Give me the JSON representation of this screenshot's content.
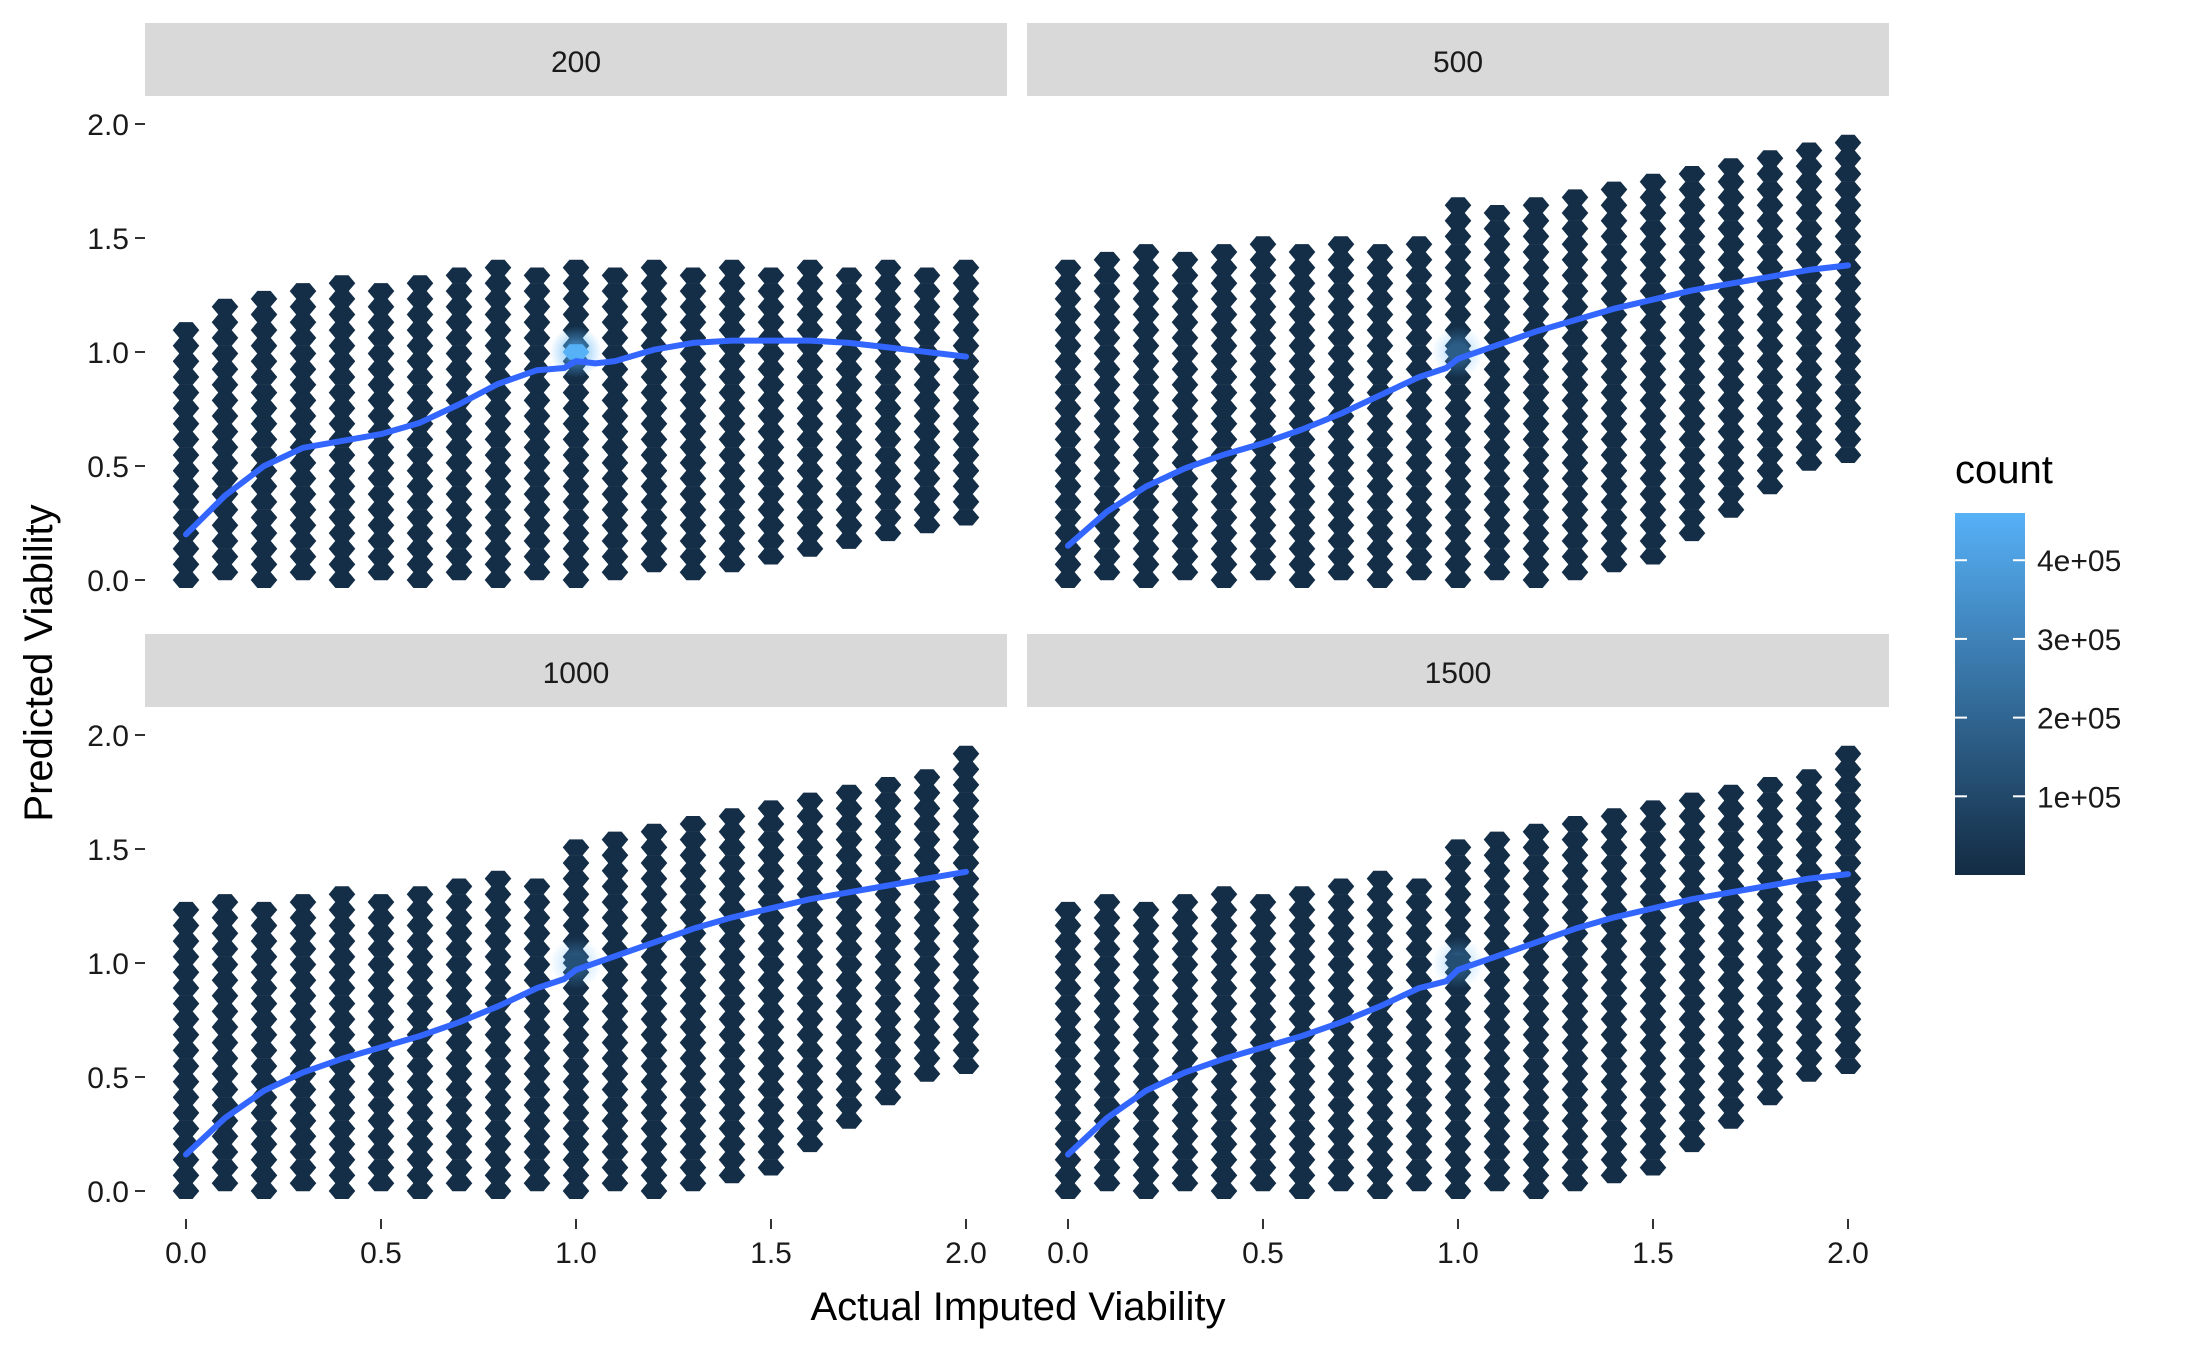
{
  "chart_data": {
    "type": "hexbin",
    "x_axis_label": "Actual Imputed Viability",
    "y_axis_label": "Predicted Viability",
    "xlim": [
      0,
      2
    ],
    "ylim": [
      0,
      2
    ],
    "x_ticks": [
      "0.0",
      "0.5",
      "1.0",
      "1.5",
      "2.0"
    ],
    "y_ticks": [
      "0.0",
      "0.5",
      "1.0",
      "1.5",
      "2.0"
    ],
    "x_tick_values": [
      0,
      0.5,
      1,
      1.5,
      2
    ],
    "y_tick_values": [
      0,
      0.5,
      1,
      1.5,
      2
    ],
    "legend": {
      "title": "count",
      "placement": "right",
      "ticks": [
        "1e+05",
        "2e+05",
        "3e+05",
        "4e+05"
      ],
      "tick_values": [
        100000,
        200000,
        300000,
        400000
      ],
      "min": 0,
      "max": 460000,
      "color_low": "#132B43",
      "color_high": "#56B1F7"
    },
    "smooth_color": "#3366FF",
    "panels": [
      {
        "label": "200",
        "cloud_upper": [
          [
            0,
            1.12
          ],
          [
            0.1,
            1.22
          ],
          [
            0.25,
            1.3
          ],
          [
            0.5,
            1.33
          ],
          [
            0.75,
            1.36
          ],
          [
            0.85,
            1.38
          ],
          [
            1.0,
            1.4
          ],
          [
            1.5,
            1.4
          ],
          [
            2.0,
            1.4
          ]
        ],
        "cloud_lower": [
          [
            0,
            0
          ],
          [
            1.0,
            0
          ],
          [
            1.4,
            0.02
          ],
          [
            1.6,
            0.1
          ],
          [
            1.8,
            0.18
          ],
          [
            2.0,
            0.22
          ]
        ],
        "hotspot": {
          "x": 1.0,
          "y": 1.0,
          "count": 460000
        },
        "smooth": {
          "x": [
            0,
            0.1,
            0.2,
            0.3,
            0.4,
            0.5,
            0.6,
            0.7,
            0.8,
            0.9,
            0.97,
            1.0,
            1.05,
            1.1,
            1.2,
            1.3,
            1.4,
            1.5,
            1.6,
            1.7,
            1.8,
            1.9,
            2.0
          ],
          "y": [
            0.2,
            0.37,
            0.5,
            0.58,
            0.61,
            0.64,
            0.69,
            0.77,
            0.86,
            0.92,
            0.93,
            0.96,
            0.95,
            0.96,
            1.01,
            1.04,
            1.05,
            1.05,
            1.05,
            1.04,
            1.02,
            1.0,
            0.98
          ]
        }
      },
      {
        "label": "500",
        "cloud_upper": [
          [
            0,
            1.42
          ],
          [
            0.25,
            1.45
          ],
          [
            0.5,
            1.48
          ],
          [
            0.75,
            1.5
          ],
          [
            0.95,
            1.52
          ],
          [
            1.0,
            1.65
          ],
          [
            1.25,
            1.7
          ],
          [
            1.5,
            1.78
          ],
          [
            1.75,
            1.85
          ],
          [
            2.0,
            1.95
          ]
        ],
        "cloud_lower": [
          [
            0,
            0
          ],
          [
            1.2,
            0
          ],
          [
            1.4,
            0.05
          ],
          [
            1.6,
            0.15
          ],
          [
            1.75,
            0.3
          ],
          [
            1.85,
            0.45
          ],
          [
            2.0,
            0.5
          ]
        ],
        "hotspot": {
          "x": 1.0,
          "y": 1.0,
          "count": 170000
        },
        "smooth": {
          "x": [
            0,
            0.1,
            0.2,
            0.3,
            0.4,
            0.5,
            0.6,
            0.7,
            0.8,
            0.9,
            0.97,
            1.0,
            1.1,
            1.2,
            1.3,
            1.4,
            1.5,
            1.6,
            1.7,
            1.8,
            1.9,
            2.0
          ],
          "y": [
            0.15,
            0.3,
            0.41,
            0.49,
            0.55,
            0.6,
            0.66,
            0.73,
            0.81,
            0.89,
            0.93,
            0.97,
            1.03,
            1.09,
            1.14,
            1.19,
            1.23,
            1.27,
            1.3,
            1.33,
            1.36,
            1.38
          ]
        }
      },
      {
        "label": "1000",
        "cloud_upper": [
          [
            0,
            1.25
          ],
          [
            0.25,
            1.3
          ],
          [
            0.5,
            1.33
          ],
          [
            0.75,
            1.36
          ],
          [
            0.95,
            1.4
          ],
          [
            1.0,
            1.55
          ],
          [
            1.25,
            1.6
          ],
          [
            1.5,
            1.7
          ],
          [
            1.75,
            1.8
          ],
          [
            2.0,
            1.92
          ]
        ],
        "cloud_lower": [
          [
            0,
            0
          ],
          [
            1.2,
            0
          ],
          [
            1.4,
            0.05
          ],
          [
            1.6,
            0.15
          ],
          [
            1.75,
            0.3
          ],
          [
            1.85,
            0.45
          ],
          [
            2.0,
            0.5
          ]
        ],
        "hotspot": {
          "x": 1.0,
          "y": 1.0,
          "count": 130000
        },
        "smooth": {
          "x": [
            0,
            0.1,
            0.2,
            0.3,
            0.4,
            0.5,
            0.6,
            0.7,
            0.8,
            0.9,
            0.97,
            1.0,
            1.1,
            1.2,
            1.3,
            1.4,
            1.5,
            1.6,
            1.7,
            1.8,
            1.9,
            2.0
          ],
          "y": [
            0.16,
            0.32,
            0.44,
            0.52,
            0.58,
            0.63,
            0.68,
            0.74,
            0.81,
            0.89,
            0.93,
            0.97,
            1.03,
            1.09,
            1.15,
            1.2,
            1.24,
            1.28,
            1.31,
            1.34,
            1.37,
            1.4
          ]
        }
      },
      {
        "label": "1500",
        "cloud_upper": [
          [
            0,
            1.25
          ],
          [
            0.25,
            1.3
          ],
          [
            0.5,
            1.33
          ],
          [
            0.75,
            1.36
          ],
          [
            0.95,
            1.4
          ],
          [
            1.0,
            1.55
          ],
          [
            1.25,
            1.6
          ],
          [
            1.5,
            1.7
          ],
          [
            1.75,
            1.8
          ],
          [
            2.0,
            1.92
          ]
        ],
        "cloud_lower": [
          [
            0,
            0
          ],
          [
            1.2,
            0
          ],
          [
            1.4,
            0.05
          ],
          [
            1.6,
            0.15
          ],
          [
            1.75,
            0.3
          ],
          [
            1.85,
            0.45
          ],
          [
            2.0,
            0.5
          ]
        ],
        "hotspot": {
          "x": 1.0,
          "y": 1.0,
          "count": 120000
        },
        "smooth": {
          "x": [
            0,
            0.1,
            0.2,
            0.3,
            0.4,
            0.5,
            0.6,
            0.7,
            0.8,
            0.9,
            0.97,
            1.0,
            1.1,
            1.2,
            1.3,
            1.4,
            1.5,
            1.6,
            1.7,
            1.8,
            1.9,
            2.0
          ],
          "y": [
            0.16,
            0.32,
            0.44,
            0.52,
            0.58,
            0.63,
            0.68,
            0.74,
            0.81,
            0.89,
            0.92,
            0.97,
            1.03,
            1.09,
            1.15,
            1.2,
            1.24,
            1.28,
            1.31,
            1.34,
            1.37,
            1.39
          ]
        }
      }
    ]
  }
}
